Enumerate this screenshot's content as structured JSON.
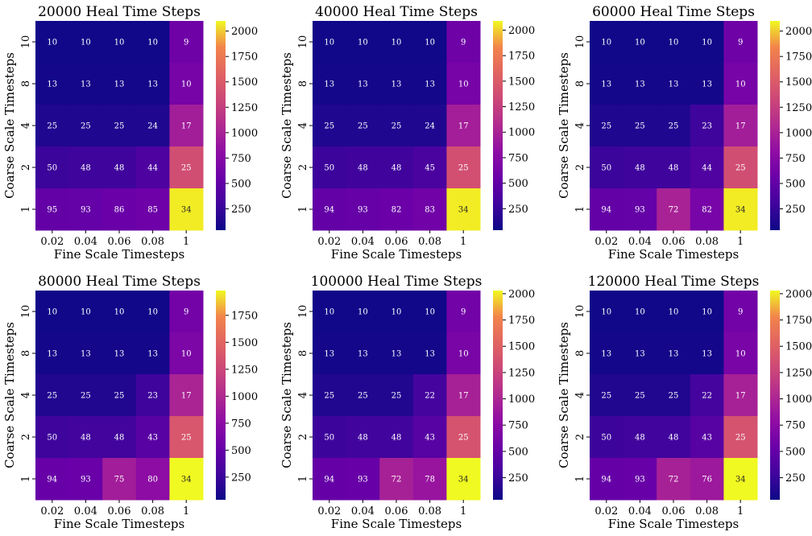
{
  "colormap": "plasma",
  "chart_data": [
    {
      "type": "heatmap",
      "title": "20000 Heal Time Steps",
      "xlabel": "Fine Scale Timesteps",
      "ylabel": "Coarse Scale Timesteps",
      "x_categories": [
        "0.02",
        "0.04",
        "0.06",
        "0.08",
        "1"
      ],
      "y_categories": [
        "10",
        "8",
        "4",
        "2",
        "1"
      ],
      "annotations": [
        [
          10,
          10,
          10,
          10,
          9
        ],
        [
          13,
          13,
          13,
          13,
          10
        ],
        [
          25,
          25,
          25,
          24,
          17
        ],
        [
          50,
          48,
          48,
          44,
          25
        ],
        [
          95,
          93,
          86,
          85,
          34
        ]
      ],
      "color_values": [
        [
          55,
          55,
          55,
          55,
          590
        ],
        [
          75,
          75,
          75,
          75,
          640
        ],
        [
          135,
          135,
          135,
          130,
          960
        ],
        [
          270,
          290,
          290,
          380,
          1390
        ],
        [
          515,
          520,
          555,
          580,
          2080
        ]
      ],
      "colorbar": {
        "ticks": [
          250,
          500,
          750,
          1000,
          1250,
          1500,
          1750,
          2000
        ],
        "tick_labels": [
          "250",
          "500",
          "750",
          "1000",
          "1250",
          "1500",
          "1750",
          "2000"
        ],
        "range": [
          40,
          2100
        ]
      }
    },
    {
      "type": "heatmap",
      "title": "40000 Heal Time Steps",
      "xlabel": "Fine Scale Timesteps",
      "ylabel": "Coarse Scale Timesteps",
      "x_categories": [
        "0.02",
        "0.04",
        "0.06",
        "0.08",
        "1"
      ],
      "y_categories": [
        "10",
        "8",
        "4",
        "2",
        "1"
      ],
      "annotations": [
        [
          10,
          10,
          10,
          10,
          9
        ],
        [
          13,
          13,
          13,
          13,
          10
        ],
        [
          25,
          25,
          25,
          24,
          17
        ],
        [
          50,
          48,
          48,
          45,
          25
        ],
        [
          94,
          93,
          82,
          83,
          34
        ]
      ],
      "color_values": [
        [
          55,
          55,
          55,
          55,
          590
        ],
        [
          75,
          75,
          75,
          75,
          640
        ],
        [
          135,
          135,
          135,
          130,
          960
        ],
        [
          270,
          290,
          290,
          360,
          1390
        ],
        [
          510,
          520,
          560,
          600,
          2070
        ]
      ],
      "colorbar": {
        "ticks": [
          250,
          500,
          750,
          1000,
          1250,
          1500,
          1750,
          2000
        ],
        "tick_labels": [
          "250",
          "500",
          "750",
          "1000",
          "1250",
          "1500",
          "1750",
          "2000"
        ],
        "range": [
          40,
          2090
        ]
      }
    },
    {
      "type": "heatmap",
      "title": "60000 Heal Time Steps",
      "xlabel": "Fine Scale Timesteps",
      "ylabel": "Coarse Scale Timesteps",
      "x_categories": [
        "0.02",
        "0.04",
        "0.06",
        "0.08",
        "1"
      ],
      "y_categories": [
        "10",
        "8",
        "4",
        "2",
        "1"
      ],
      "annotations": [
        [
          10,
          10,
          10,
          10,
          9
        ],
        [
          13,
          13,
          13,
          13,
          10
        ],
        [
          25,
          25,
          25,
          23,
          17
        ],
        [
          50,
          48,
          48,
          44,
          25
        ],
        [
          94,
          93,
          72,
          82,
          34
        ]
      ],
      "color_values": [
        [
          55,
          55,
          55,
          55,
          590
        ],
        [
          75,
          75,
          75,
          75,
          640
        ],
        [
          135,
          135,
          135,
          290,
          960
        ],
        [
          270,
          290,
          290,
          390,
          1390
        ],
        [
          510,
          520,
          1000,
          650,
          2080
        ]
      ],
      "colorbar": {
        "ticks": [
          250,
          500,
          750,
          1000,
          1250,
          1500,
          1750,
          2000
        ],
        "tick_labels": [
          "250",
          "500",
          "750",
          "1000",
          "1250",
          "1500",
          "1750",
          "2000"
        ],
        "range": [
          40,
          2100
        ]
      }
    },
    {
      "type": "heatmap",
      "title": "80000 Heal Time Steps",
      "xlabel": "Fine Scale Timesteps",
      "ylabel": "Coarse Scale Timesteps",
      "x_categories": [
        "0.02",
        "0.04",
        "0.06",
        "0.08",
        "1"
      ],
      "y_categories": [
        "10",
        "8",
        "4",
        "2",
        "1"
      ],
      "annotations": [
        [
          10,
          10,
          10,
          10,
          9
        ],
        [
          13,
          13,
          13,
          13,
          10
        ],
        [
          25,
          25,
          25,
          23,
          17
        ],
        [
          50,
          48,
          48,
          43,
          25
        ],
        [
          94,
          93,
          75,
          80,
          34
        ]
      ],
      "color_values": [
        [
          55,
          55,
          55,
          55,
          590
        ],
        [
          75,
          75,
          75,
          75,
          640
        ],
        [
          135,
          135,
          135,
          270,
          960
        ],
        [
          270,
          290,
          290,
          420,
          1390
        ],
        [
          510,
          520,
          900,
          750,
          1980
        ]
      ],
      "colorbar": {
        "ticks": [
          250,
          500,
          750,
          1000,
          1250,
          1500,
          1750
        ],
        "tick_labels": [
          "250",
          "500",
          "750",
          "1000",
          "1250",
          "1500",
          "1750"
        ],
        "range": [
          40,
          1980
        ]
      }
    },
    {
      "type": "heatmap",
      "title": "100000 Heal Time Steps",
      "xlabel": "Fine Scale Timesteps",
      "ylabel": "Coarse Scale Timesteps",
      "x_categories": [
        "0.02",
        "0.04",
        "0.06",
        "0.08",
        "1"
      ],
      "y_categories": [
        "10",
        "8",
        "4",
        "2",
        "1"
      ],
      "annotations": [
        [
          10,
          10,
          10,
          10,
          9
        ],
        [
          13,
          13,
          13,
          13,
          10
        ],
        [
          25,
          25,
          25,
          22,
          17
        ],
        [
          50,
          48,
          48,
          43,
          25
        ],
        [
          94,
          93,
          72,
          78,
          34
        ]
      ],
      "color_values": [
        [
          55,
          55,
          55,
          55,
          590
        ],
        [
          75,
          75,
          75,
          75,
          640
        ],
        [
          135,
          135,
          135,
          310,
          960
        ],
        [
          270,
          290,
          290,
          420,
          1390
        ],
        [
          510,
          520,
          960,
          850,
          2030
        ]
      ],
      "colorbar": {
        "ticks": [
          250,
          500,
          750,
          1000,
          1250,
          1500,
          1750,
          2000
        ],
        "tick_labels": [
          "250",
          "500",
          "750",
          "1000",
          "1250",
          "1500",
          "1750",
          "2000"
        ],
        "range": [
          40,
          2030
        ]
      }
    },
    {
      "type": "heatmap",
      "title": "120000 Heal Time Steps",
      "xlabel": "Fine Scale Timesteps",
      "ylabel": "Coarse Scale Timesteps",
      "x_categories": [
        "0.02",
        "0.04",
        "0.06",
        "0.08",
        "1"
      ],
      "y_categories": [
        "10",
        "8",
        "4",
        "2",
        "1"
      ],
      "annotations": [
        [
          10,
          10,
          10,
          10,
          9
        ],
        [
          13,
          13,
          13,
          13,
          10
        ],
        [
          25,
          25,
          25,
          22,
          17
        ],
        [
          50,
          48,
          48,
          43,
          25
        ],
        [
          94,
          93,
          72,
          76,
          34
        ]
      ],
      "color_values": [
        [
          55,
          55,
          55,
          55,
          590
        ],
        [
          75,
          75,
          75,
          75,
          640
        ],
        [
          135,
          135,
          135,
          310,
          960
        ],
        [
          270,
          290,
          290,
          420,
          1390
        ],
        [
          510,
          520,
          960,
          880,
          2030
        ]
      ],
      "colorbar": {
        "ticks": [
          250,
          500,
          750,
          1000,
          1250,
          1500,
          1750,
          2000
        ],
        "tick_labels": [
          "250",
          "500",
          "750",
          "1000",
          "1250",
          "1500",
          "1750",
          "2000"
        ],
        "range": [
          40,
          2030
        ]
      }
    }
  ]
}
